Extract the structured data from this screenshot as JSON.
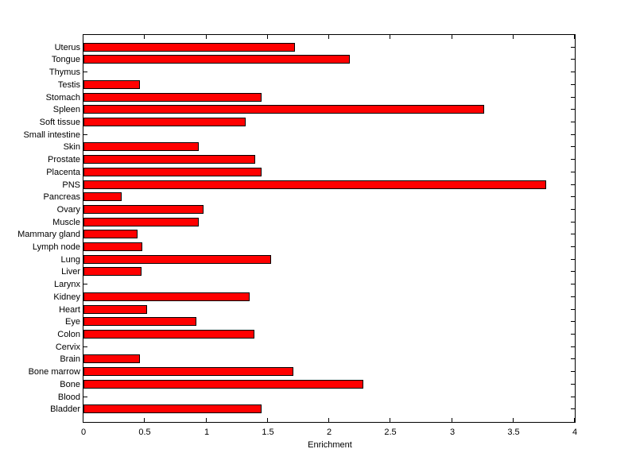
{
  "chart_data": {
    "type": "bar",
    "orientation": "horizontal",
    "title": "",
    "xlabel": "Enrichment",
    "ylabel": "",
    "xlim": [
      0,
      4
    ],
    "xticks": [
      0,
      0.5,
      1,
      1.5,
      2,
      2.5,
      3,
      3.5,
      4
    ],
    "xtick_labels": [
      "0",
      "0.5",
      "1",
      "1.5",
      "2",
      "2.5",
      "3",
      "3.5",
      "4"
    ],
    "categories": [
      "Uterus",
      "Tongue",
      "Thymus",
      "Testis",
      "Stomach",
      "Spleen",
      "Soft tissue",
      "Small intestine",
      "Skin",
      "Prostate",
      "Placenta",
      "PNS",
      "Pancreas",
      "Ovary",
      "Muscle",
      "Mammary gland",
      "Lymph node",
      "Lung",
      "Liver",
      "Larynx",
      "Kidney",
      "Heart",
      "Eye",
      "Colon",
      "Cervix",
      "Brain",
      "Bone marrow",
      "Bone",
      "Blood",
      "Bladder"
    ],
    "values": [
      1.72,
      2.17,
      0,
      0.46,
      1.45,
      3.26,
      1.32,
      0,
      0.94,
      1.4,
      1.45,
      3.77,
      0.31,
      0.98,
      0.94,
      0.44,
      0.48,
      1.53,
      0.47,
      0,
      1.35,
      0.52,
      0.92,
      1.39,
      0,
      0.46,
      1.71,
      2.28,
      0,
      1.45
    ],
    "bar_color": "#FF0000",
    "bar_edge_color": "#000000",
    "axes_color": "#000000",
    "background_color": "#FFFFFF",
    "grid": false,
    "legend_position": "none"
  }
}
